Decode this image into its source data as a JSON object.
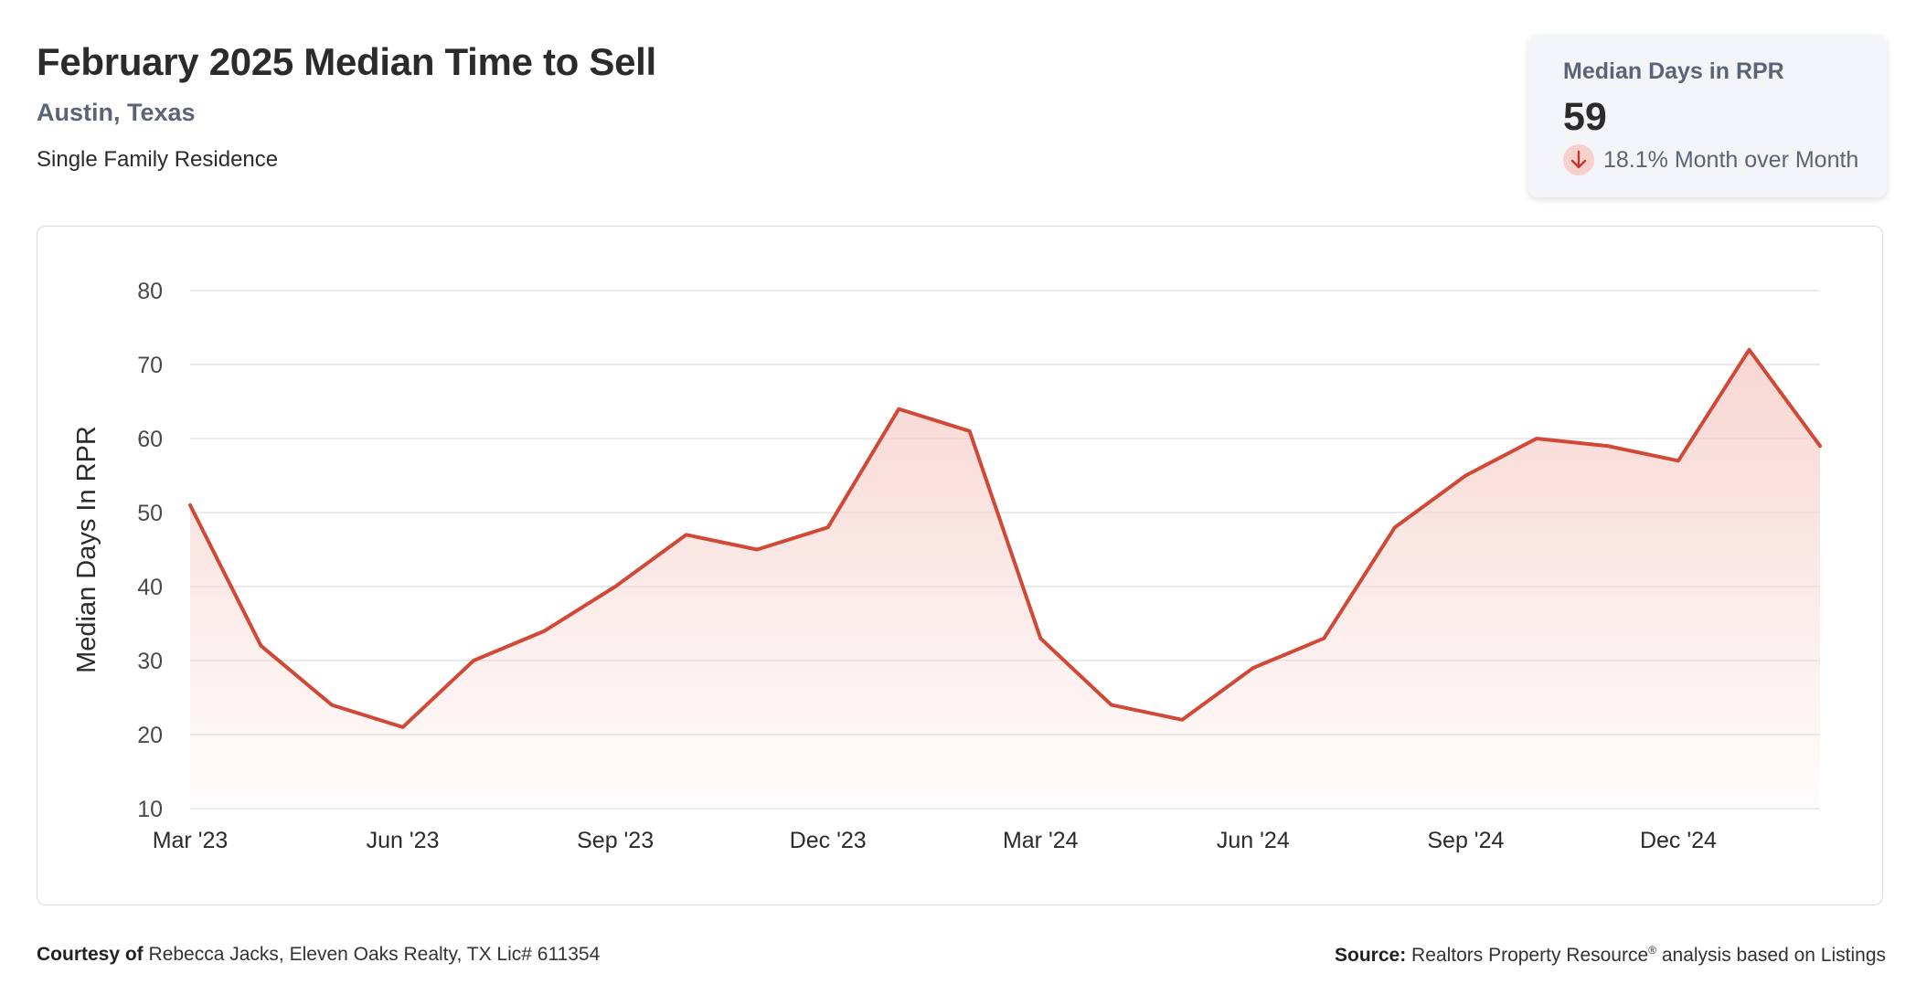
{
  "header": {
    "title": "February 2025 Median Time to Sell",
    "location": "Austin, Texas",
    "property_type": "Single Family Residence"
  },
  "stat_card": {
    "label": "Median Days in RPR",
    "value": "59",
    "change": "18.1% Month over Month",
    "change_icon": "arrow-down-icon",
    "change_direction": "down"
  },
  "footer": {
    "courtesy_label": "Courtesy of",
    "courtesy_text": "Rebecca Jacks, Eleven Oaks Realty, TX Lic# 611354",
    "source_label": "Source:",
    "source_text": "Realtors Property Resource",
    "source_mark": "®",
    "source_suffix": "analysis based on Listings"
  },
  "colors": {
    "line": "#d14836",
    "fill": "#f6cfca",
    "grid": "#e3e3e3",
    "axis_text": "#4a4a4a"
  },
  "chart_data": {
    "type": "area",
    "xlabel": "",
    "ylabel": "Median Days In RPR",
    "ylim": [
      10,
      80
    ],
    "yticks": [
      10,
      20,
      30,
      40,
      50,
      60,
      70,
      80
    ],
    "grid": true,
    "x": [
      "Mar '23",
      "Apr '23",
      "May '23",
      "Jun '23",
      "Jul '23",
      "Aug '23",
      "Sep '23",
      "Oct '23",
      "Nov '23",
      "Dec '23",
      "Jan '24",
      "Feb '24",
      "Mar '24",
      "Apr '24",
      "May '24",
      "Jun '24",
      "Jul '24",
      "Aug '24",
      "Sep '24",
      "Oct '24",
      "Nov '24",
      "Dec '24",
      "Jan '25",
      "Feb '25"
    ],
    "xtick_labels": [
      {
        "index": 0,
        "label": "Mar '23"
      },
      {
        "index": 3,
        "label": "Jun '23"
      },
      {
        "index": 6,
        "label": "Sep '23"
      },
      {
        "index": 9,
        "label": "Dec '23"
      },
      {
        "index": 12,
        "label": "Mar '24"
      },
      {
        "index": 15,
        "label": "Jun '24"
      },
      {
        "index": 18,
        "label": "Sep '24"
      },
      {
        "index": 21,
        "label": "Dec '24"
      }
    ],
    "series": [
      {
        "values": [
          51,
          32,
          24,
          21,
          30,
          34,
          40,
          47,
          45,
          48,
          64,
          61,
          33,
          24,
          22,
          29,
          33,
          48,
          55,
          60,
          59,
          57,
          72,
          59
        ]
      }
    ]
  }
}
